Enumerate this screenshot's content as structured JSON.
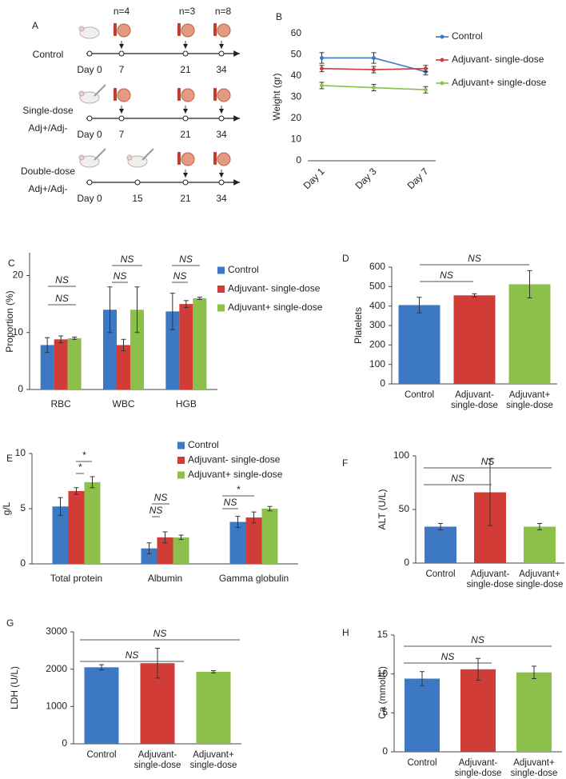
{
  "panel_a": {
    "label": "A",
    "counts": [
      "n=4",
      "n=3",
      "n=8"
    ],
    "groups": [
      {
        "name": [
          "Control"
        ],
        "days": [
          "Day 0",
          "7",
          "21",
          "34"
        ]
      },
      {
        "name": [
          "Single-dose",
          "Adj+/Adj-"
        ],
        "days": [
          "Day 0",
          "7",
          "21",
          "34"
        ]
      },
      {
        "name": [
          "Double-dose",
          "Adj+/Adj-"
        ],
        "days": [
          "Day 0",
          "15",
          "21",
          "34"
        ]
      }
    ]
  },
  "chart_data": [
    {
      "type": "line",
      "label": "B",
      "ylabel": "Weight (gr)",
      "categories": [
        "Day 1",
        "Day 3",
        "Day 7"
      ],
      "ylim": [
        0,
        60
      ],
      "yticks": [
        0,
        10,
        20,
        30,
        40,
        50,
        60
      ],
      "legend": "right",
      "series": [
        {
          "name": "Control",
          "color": "#3c78c3",
          "values": [
            48.5,
            48.5,
            42
          ],
          "errors": [
            2.5,
            2.5,
            1.5
          ]
        },
        {
          "name": "Adjuvant- single-dose",
          "color": "#d13c37",
          "values": [
            43.5,
            43,
            43.5
          ],
          "errors": [
            1.5,
            1.5,
            1.5
          ]
        },
        {
          "name": "Adjuvant+ single-dose",
          "color": "#8dc04b",
          "values": [
            35.5,
            34.5,
            33.5
          ],
          "errors": [
            1.5,
            1.5,
            1.5
          ]
        }
      ]
    },
    {
      "type": "bar",
      "label": "C",
      "ylabel": "Proportion (%)",
      "categories": [
        "RBC",
        "WBC",
        "HGB"
      ],
      "ylim": [
        0,
        24
      ],
      "yticks": [
        0,
        10,
        20
      ],
      "legend": "right",
      "series": [
        {
          "name": "Control",
          "color": "#3c78c3",
          "values": [
            7.8,
            14,
            13.7
          ],
          "errors": [
            1.3,
            4,
            3.2
          ]
        },
        {
          "name": "Adjuvant- single-dose",
          "color": "#d13c37",
          "values": [
            8.8,
            7.8,
            15
          ],
          "errors": [
            0.6,
            1,
            0.6
          ]
        },
        {
          "name": "Adjuvant+ single-dose",
          "color": "#8dc04b",
          "values": [
            9,
            14,
            16
          ],
          "errors": [
            0.2,
            4,
            0.2
          ]
        }
      ],
      "annotations": [
        "NS",
        "NS",
        "NS",
        "NS",
        "NS",
        "NS"
      ]
    },
    {
      "type": "bar",
      "label": "D",
      "ylabel": "Platelets",
      "categories": [
        "Control",
        "Adjuvant- single-dose",
        "Adjuvant+ single-dose"
      ],
      "colors": [
        "#3c78c3",
        "#d13c37",
        "#8dc04b"
      ],
      "values": [
        405,
        455,
        512
      ],
      "errors": [
        40,
        8,
        70
      ],
      "ylim": [
        0,
        600
      ],
      "yticks": [
        0,
        100,
        200,
        300,
        400,
        500,
        600
      ],
      "annotations": [
        "NS",
        "NS"
      ]
    },
    {
      "type": "bar",
      "label": "E",
      "ylabel": "g/L",
      "categories": [
        "Total protein",
        "Albumin",
        "Gamma globulin"
      ],
      "ylim": [
        0,
        10
      ],
      "yticks": [
        0,
        5,
        10
      ],
      "legend": "top",
      "series": [
        {
          "name": "Control",
          "color": "#3c78c3",
          "values": [
            5.2,
            1.4,
            3.8
          ],
          "errors": [
            0.8,
            0.5,
            0.5
          ]
        },
        {
          "name": "Adjuvant- single-dose",
          "color": "#d13c37",
          "values": [
            6.6,
            2.4,
            4.2
          ],
          "errors": [
            0.3,
            0.5,
            0.5
          ]
        },
        {
          "name": "Adjuvant+ single-dose",
          "color": "#8dc04b",
          "values": [
            7.4,
            2.4,
            5
          ],
          "errors": [
            0.5,
            0.2,
            0.2
          ]
        }
      ],
      "annotations": [
        "*",
        "*",
        "NS",
        "NS",
        "NS",
        "*"
      ]
    },
    {
      "type": "bar",
      "label": "F",
      "ylabel": "ALT (U/L)",
      "categories": [
        "Control",
        "Adjuvant- single-dose",
        "Adjuvant+ single-dose"
      ],
      "colors": [
        "#3c78c3",
        "#d13c37",
        "#8dc04b"
      ],
      "values": [
        34,
        66,
        34
      ],
      "errors": [
        3,
        31,
        3
      ],
      "ylim": [
        0,
        100
      ],
      "yticks": [
        0,
        50,
        100
      ],
      "annotations": [
        "NS",
        "NS"
      ]
    },
    {
      "type": "bar",
      "label": "G",
      "ylabel": "LDH (U/L)",
      "categories": [
        "Control",
        "Adjuvant- single-dose",
        "Adjuvant+ single-dose"
      ],
      "colors": [
        "#3c78c3",
        "#d13c37",
        "#8dc04b"
      ],
      "values": [
        2050,
        2160,
        1930
      ],
      "errors": [
        70,
        400,
        30
      ],
      "ylim": [
        0,
        3000
      ],
      "yticks": [
        0,
        1000,
        2000,
        3000
      ],
      "annotations": [
        "NS",
        "NS"
      ]
    },
    {
      "type": "bar",
      "label": "H",
      "ylabel": "Ca (mmol/L)",
      "categories": [
        "Control",
        "Adjuvant- single-dose",
        "Adjuvant+ single-dose"
      ],
      "colors": [
        "#3c78c3",
        "#d13c37",
        "#8dc04b"
      ],
      "values": [
        9.4,
        10.6,
        10.2
      ],
      "errors": [
        0.9,
        1.4,
        0.8
      ],
      "ylim": [
        0,
        15
      ],
      "yticks": [
        0,
        5,
        10,
        15
      ],
      "annotations": [
        "NS",
        "NS"
      ]
    }
  ]
}
